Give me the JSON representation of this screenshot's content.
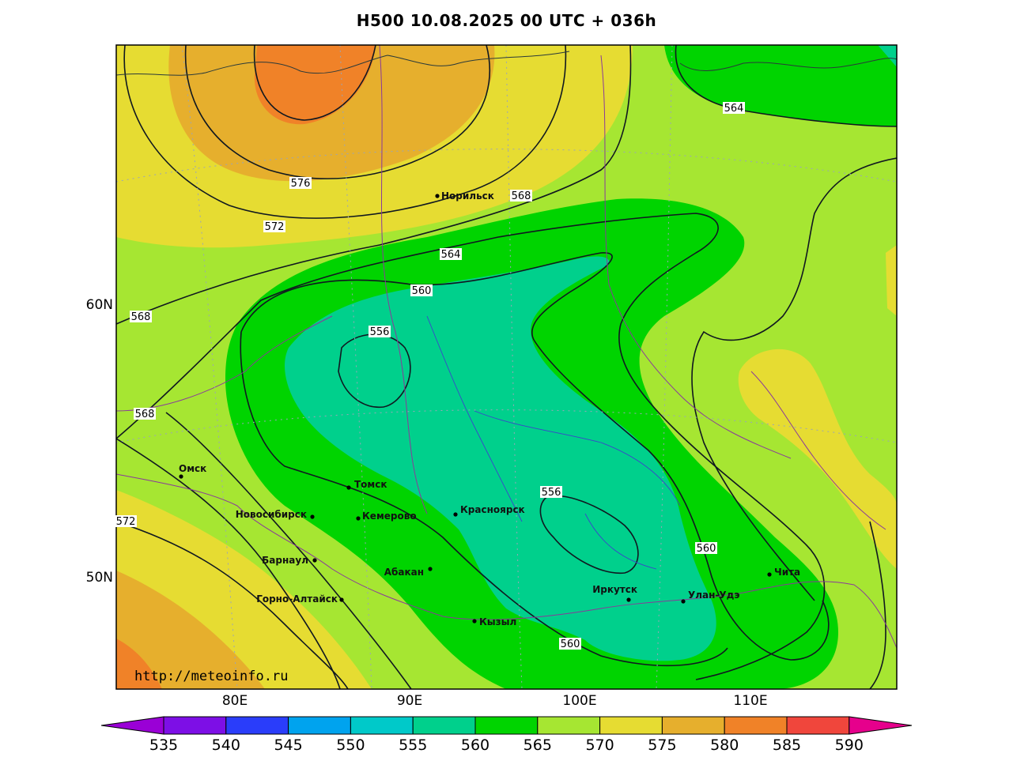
{
  "title": "H500  10.08.2025 00 UTC + 036h",
  "credit": "http://meteoinfo.ru",
  "axes": {
    "lon_ticks": [
      "80E",
      "90E",
      "100E",
      "110E"
    ],
    "lat_ticks": [
      "60N",
      "50N"
    ]
  },
  "cities": [
    {
      "name": "Норильск",
      "lon": 88.2,
      "lat": 69.35
    },
    {
      "name": "Омск",
      "lon": 73.4,
      "lat": 55.0
    },
    {
      "name": "Томск",
      "lon": 85.0,
      "lat": 56.5
    },
    {
      "name": "Новосибирск",
      "lon": 82.9,
      "lat": 55.0
    },
    {
      "name": "Кемерово",
      "lon": 86.1,
      "lat": 55.35
    },
    {
      "name": "Красноярск",
      "lon": 92.9,
      "lat": 56.0
    },
    {
      "name": "Барнаул",
      "lon": 83.8,
      "lat": 53.35
    },
    {
      "name": "Абакан",
      "lon": 91.4,
      "lat": 53.7
    },
    {
      "name": "Горно-Алтайск",
      "lon": 85.95,
      "lat": 51.95
    },
    {
      "name": "Кызыл",
      "lon": 94.4,
      "lat": 51.7
    },
    {
      "name": "Иркутск",
      "lon": 104.3,
      "lat": 52.3
    },
    {
      "name": "Улан-Удэ",
      "lon": 107.6,
      "lat": 51.8
    },
    {
      "name": "Чита",
      "lon": 113.5,
      "lat": 52.0
    }
  ],
  "contour_labels": [
    "576",
    "572",
    "568",
    "568",
    "568",
    "564",
    "564",
    "560",
    "556",
    "572",
    "556",
    "560",
    "560"
  ],
  "colorbar": {
    "ticks": [
      "535",
      "540",
      "545",
      "550",
      "555",
      "560",
      "565",
      "570",
      "575",
      "580",
      "585",
      "590"
    ],
    "colors": [
      "#9a00d6",
      "#7d0fe6",
      "#2a3dfa",
      "#00a3ee",
      "#00c9c9",
      "#00d08c",
      "#00d400",
      "#a6e632",
      "#e6dc32",
      "#e6af2d",
      "#f08228",
      "#f0463c",
      "#e6008c"
    ]
  }
}
